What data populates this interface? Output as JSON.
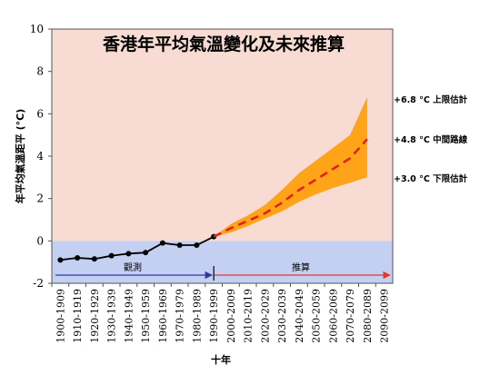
{
  "chart_data": {
    "type": "line",
    "title": "香港年平均氣溫變化及未來推算",
    "xlabel": "十年",
    "ylabel": "年平均氣溫距平 (°C)",
    "ylim": [
      -2,
      10
    ],
    "yticks": [
      -2,
      0,
      2,
      4,
      6,
      8,
      10
    ],
    "categories": [
      "1900-1909",
      "1910-1919",
      "1920-1929",
      "1930-1939",
      "1940-1949",
      "1950-1959",
      "1960-1969",
      "1970-1979",
      "1980-1989",
      "1990-1999",
      "2000-2009",
      "2010-2019",
      "2020-2029",
      "2030-2039",
      "2040-2049",
      "2050-2059",
      "2060-2069",
      "2070-2079",
      "2080-2089",
      "2090-2099"
    ],
    "observed": {
      "label": "觀測",
      "values": [
        -0.9,
        -0.8,
        -0.85,
        -0.7,
        -0.6,
        -0.55,
        -0.1,
        -0.2,
        -0.2,
        0.2
      ],
      "color": "#000000"
    },
    "projection": {
      "label": "推算",
      "median": [
        0.2,
        0.6,
        0.95,
        1.3,
        1.8,
        2.4,
        2.9,
        3.4,
        3.9,
        4.8
      ],
      "lower": [
        0.2,
        0.4,
        0.7,
        1.05,
        1.4,
        1.85,
        2.2,
        2.5,
        2.75,
        3.0
      ],
      "upper": [
        0.2,
        0.8,
        1.2,
        1.7,
        2.4,
        3.2,
        3.8,
        4.4,
        5.0,
        6.8
      ],
      "line_color": "#e0241b",
      "band_color": "#ffa319"
    },
    "annotations": {
      "upper": "+6.8 °C 上限估計",
      "median": "+4.8 °C 中間路線",
      "lower": "+3.0 °C 下限估計"
    },
    "background_above_zero": "#f8dcd4",
    "background_below_zero": "#c4d0f2",
    "observed_arrow_color": "#2f3aa0",
    "projection_arrow_color": "#e03a2e",
    "grid": false
  }
}
